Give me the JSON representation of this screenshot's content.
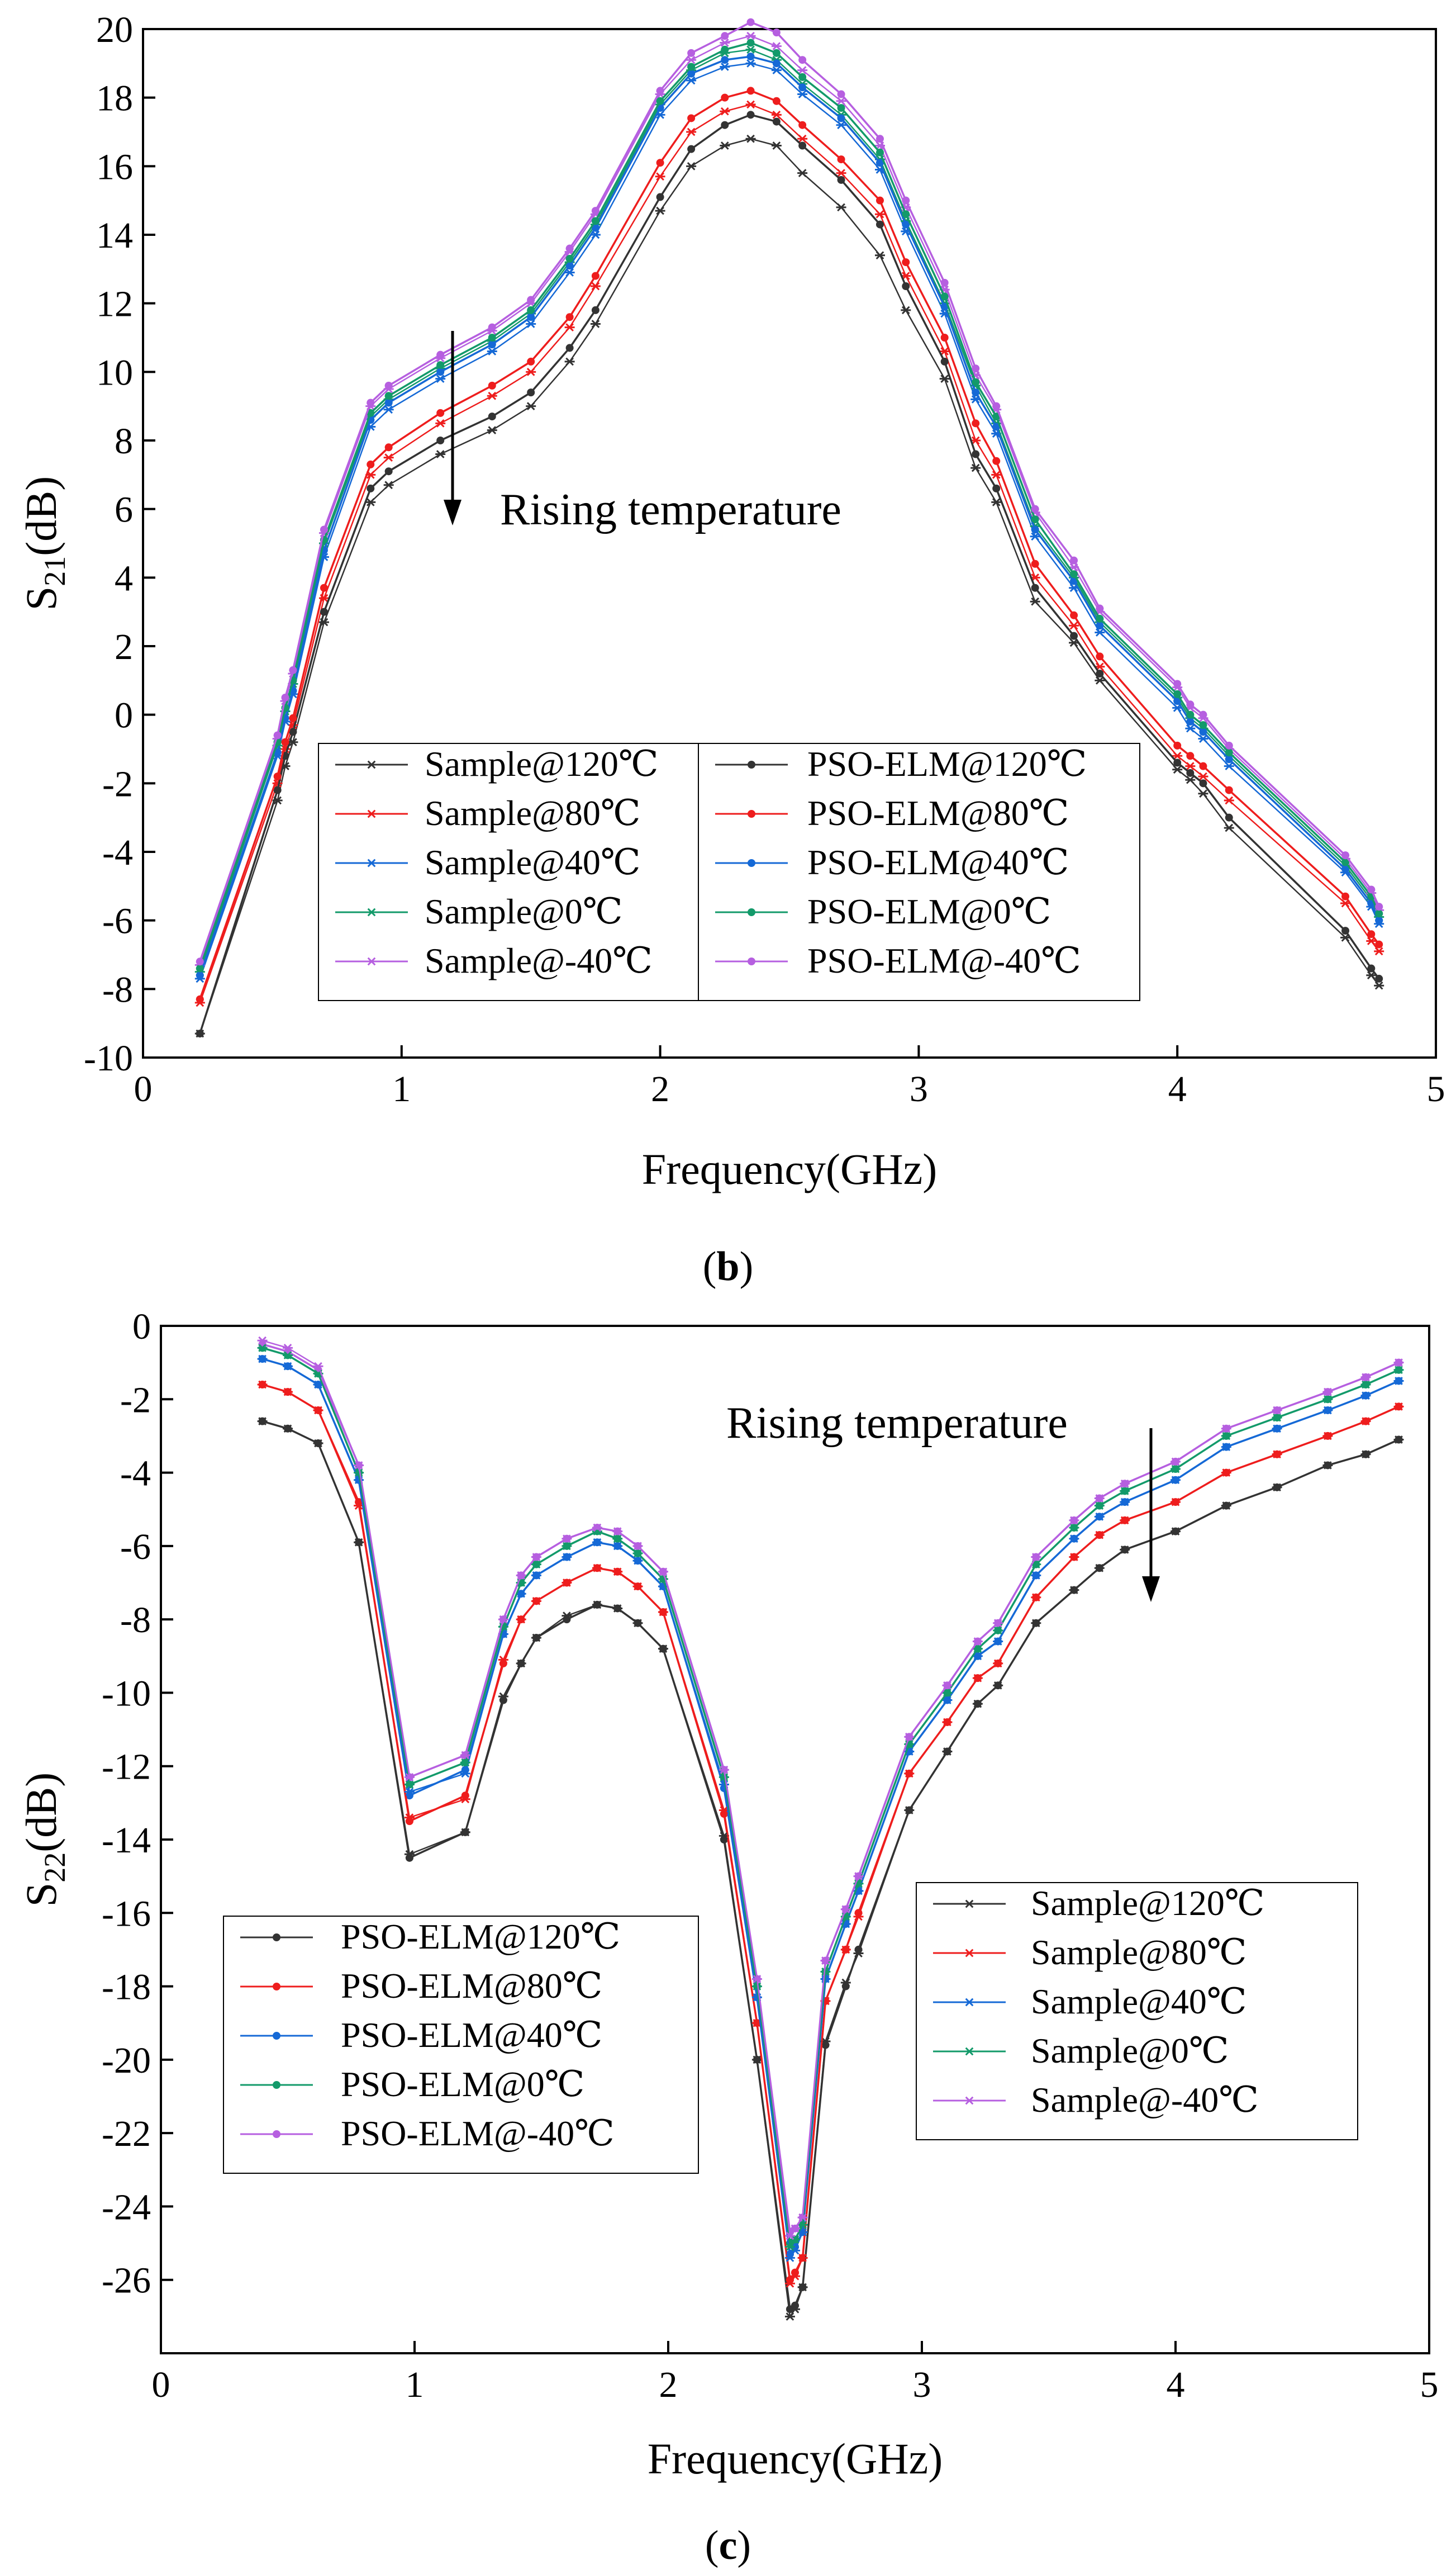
{
  "colors": {
    "c120": "#333333",
    "c80": "#ee1d1d",
    "c40": "#1569d6",
    "c0": "#139a6a",
    "cm40": "#b65fe0"
  },
  "chart_data": [
    {
      "id": "b",
      "caption": {
        "pre": "(",
        "letter": "b",
        "post": ")"
      },
      "type": "line",
      "xlabel": "Frequency(GHz)",
      "ylabel": {
        "base": "S",
        "sub": "21",
        "unit": "(dB)"
      },
      "xlim": [
        0,
        5
      ],
      "ylim": [
        -10,
        20
      ],
      "xticks": [
        "0",
        "1",
        "2",
        "3",
        "4",
        "5"
      ],
      "yticks": [
        "-10",
        "-8",
        "-6",
        "-4",
        "-2",
        "0",
        "2",
        "4",
        "6",
        "8",
        "10",
        "12",
        "14",
        "16",
        "18",
        "20"
      ],
      "annotation": "Rising temperature",
      "legend": {
        "left": [
          "Sample@120℃",
          "Sample@80℃",
          "Sample@40℃",
          "Sample@0℃",
          "Sample@-40℃"
        ],
        "right": [
          "PSO-ELM@120℃",
          "PSO-ELM@80℃",
          "PSO-ELM@40℃",
          "PSO-ELM@0℃",
          "PSO-ELM@-40℃"
        ]
      },
      "x": [
        0.22,
        0.52,
        0.55,
        0.58,
        0.7,
        0.88,
        0.95,
        1.15,
        1.35,
        1.5,
        1.65,
        1.75,
        2.0,
        2.12,
        2.25,
        2.35,
        2.45,
        2.55,
        2.7,
        2.85,
        2.95,
        3.1,
        3.22,
        3.3,
        3.45,
        3.6,
        3.7,
        4.0,
        4.05,
        4.1,
        4.2,
        4.65,
        4.75,
        4.78
      ],
      "series": [
        {
          "name": "Sample@120℃",
          "values": [
            -9.3,
            -2.5,
            -1.5,
            -0.8,
            2.7,
            6.2,
            6.7,
            7.6,
            8.3,
            9.0,
            10.3,
            11.4,
            14.7,
            16.0,
            16.6,
            16.8,
            16.6,
            15.8,
            14.8,
            13.4,
            11.8,
            9.8,
            7.2,
            6.2,
            3.3,
            2.1,
            1.0,
            -1.6,
            -1.9,
            -2.3,
            -3.3,
            -6.5,
            -7.6,
            -7.9
          ]
        },
        {
          "name": "Sample@80℃",
          "values": [
            -8.4,
            -2.0,
            -1.0,
            -0.3,
            3.4,
            7.0,
            7.5,
            8.5,
            9.3,
            10.0,
            11.3,
            12.5,
            15.7,
            17.0,
            17.6,
            17.8,
            17.5,
            16.8,
            15.8,
            14.6,
            12.8,
            10.6,
            8.0,
            7.0,
            4.0,
            2.6,
            1.4,
            -1.2,
            -1.5,
            -1.8,
            -2.5,
            -5.5,
            -6.6,
            -6.9
          ]
        },
        {
          "name": "Sample@40℃",
          "values": [
            -7.7,
            -1.2,
            -0.2,
            0.6,
            4.6,
            8.4,
            8.9,
            9.8,
            10.6,
            11.4,
            12.9,
            14.0,
            17.5,
            18.5,
            18.9,
            19.0,
            18.8,
            18.1,
            17.2,
            15.9,
            14.1,
            11.7,
            9.2,
            8.2,
            5.2,
            3.7,
            2.4,
            0.2,
            -0.4,
            -0.7,
            -1.5,
            -4.6,
            -5.6,
            -6.1
          ]
        },
        {
          "name": "Sample@0℃",
          "values": [
            -7.5,
            -0.9,
            0.1,
            0.9,
            5.0,
            8.7,
            9.2,
            10.1,
            10.9,
            11.7,
            13.2,
            14.3,
            17.8,
            18.8,
            19.3,
            19.4,
            19.1,
            18.4,
            17.5,
            16.2,
            14.4,
            12.0,
            9.6,
            8.5,
            5.5,
            4.0,
            2.7,
            0.5,
            -0.1,
            -0.4,
            -1.2,
            -4.4,
            -5.4,
            -5.9
          ]
        },
        {
          "name": "Sample@-40℃",
          "values": [
            -7.3,
            -0.7,
            0.4,
            1.2,
            5.3,
            9.0,
            9.5,
            10.4,
            11.2,
            12.0,
            13.5,
            14.6,
            18.1,
            19.1,
            19.6,
            19.8,
            19.5,
            18.8,
            17.9,
            16.6,
            14.8,
            12.4,
            9.9,
            8.9,
            5.9,
            4.3,
            3.0,
            0.8,
            0.2,
            -0.1,
            -1.0,
            -4.2,
            -5.2,
            -5.7
          ]
        },
        {
          "name": "PSO-ELM@120℃",
          "values": [
            -9.3,
            -2.2,
            -1.2,
            -0.5,
            3.0,
            6.6,
            7.1,
            8.0,
            8.7,
            9.4,
            10.7,
            11.8,
            15.1,
            16.5,
            17.2,
            17.5,
            17.3,
            16.6,
            15.6,
            14.3,
            12.5,
            10.3,
            7.6,
            6.6,
            3.7,
            2.3,
            1.2,
            -1.4,
            -1.7,
            -2.0,
            -3.0,
            -6.3,
            -7.4,
            -7.7
          ]
        },
        {
          "name": "PSO-ELM@80℃",
          "values": [
            -8.3,
            -1.8,
            -0.8,
            -0.1,
            3.7,
            7.3,
            7.8,
            8.8,
            9.6,
            10.3,
            11.6,
            12.8,
            16.1,
            17.4,
            18.0,
            18.2,
            17.9,
            17.2,
            16.2,
            15.0,
            13.2,
            11.0,
            8.5,
            7.4,
            4.4,
            2.9,
            1.7,
            -0.9,
            -1.2,
            -1.5,
            -2.2,
            -5.3,
            -6.4,
            -6.7
          ]
        },
        {
          "name": "PSO-ELM@40℃",
          "values": [
            -7.6,
            -1.1,
            -0.1,
            0.7,
            4.8,
            8.6,
            9.1,
            10.0,
            10.8,
            11.6,
            13.1,
            14.2,
            17.7,
            18.7,
            19.1,
            19.2,
            19.0,
            18.3,
            17.4,
            16.1,
            14.3,
            11.9,
            9.4,
            8.4,
            5.4,
            3.9,
            2.6,
            0.4,
            -0.2,
            -0.5,
            -1.3,
            -4.5,
            -5.5,
            -6.0
          ]
        },
        {
          "name": "PSO-ELM@0℃",
          "values": [
            -7.4,
            -0.8,
            0.2,
            1.0,
            5.1,
            8.8,
            9.3,
            10.2,
            11.0,
            11.8,
            13.3,
            14.4,
            17.9,
            18.9,
            19.4,
            19.6,
            19.3,
            18.6,
            17.7,
            16.4,
            14.6,
            12.2,
            9.7,
            8.7,
            5.7,
            4.1,
            2.8,
            0.6,
            0.0,
            -0.3,
            -1.1,
            -4.3,
            -5.3,
            -5.8
          ]
        },
        {
          "name": "PSO-ELM@-40℃",
          "values": [
            -7.2,
            -0.6,
            0.5,
            1.3,
            5.4,
            9.1,
            9.6,
            10.5,
            11.3,
            12.1,
            13.6,
            14.7,
            18.2,
            19.3,
            19.8,
            20.2,
            19.9,
            19.1,
            18.1,
            16.8,
            15.0,
            12.6,
            10.1,
            9.0,
            6.0,
            4.5,
            3.1,
            0.9,
            0.3,
            0.0,
            -0.9,
            -4.1,
            -5.1,
            -5.6
          ]
        }
      ]
    },
    {
      "id": "c",
      "caption": {
        "pre": "(",
        "letter": "c",
        "post": ")"
      },
      "type": "line",
      "xlabel": "Frequency(GHz)",
      "ylabel": {
        "base": "S",
        "sub": "22",
        "unit": "(dB)"
      },
      "xlim": [
        0,
        5
      ],
      "ylim": [
        -28,
        0
      ],
      "xticks": [
        "0",
        "1",
        "2",
        "3",
        "4",
        "5"
      ],
      "yticks": [
        "-26",
        "-24",
        "-22",
        "-20",
        "-18",
        "-16",
        "-14",
        "-12",
        "-10",
        "-8",
        "-6",
        "-4",
        "-2",
        "0"
      ],
      "annotation": "Rising temperature",
      "legend": {
        "left": [
          "PSO-ELM@120℃",
          "PSO-ELM@80℃",
          "PSO-ELM@40℃",
          "PSO-ELM@0℃",
          "PSO-ELM@-40℃"
        ],
        "right": [
          "Sample@120℃",
          "Sample@80℃",
          "Sample@40℃",
          "Sample@0℃",
          "Sample@-40℃"
        ]
      },
      "x": [
        0.4,
        0.5,
        0.62,
        0.78,
        0.98,
        1.2,
        1.35,
        1.42,
        1.48,
        1.6,
        1.72,
        1.8,
        1.88,
        1.98,
        2.22,
        2.35,
        2.48,
        2.5,
        2.53,
        2.62,
        2.7,
        2.75,
        2.95,
        3.1,
        3.22,
        3.3,
        3.45,
        3.6,
        3.7,
        3.8,
        4.0,
        4.2,
        4.4,
        4.6,
        4.75,
        4.88
      ],
      "series": [
        {
          "name": "PSO-ELM@120℃",
          "values": [
            -2.6,
            -2.8,
            -3.2,
            -5.9,
            -14.5,
            -13.8,
            -10.2,
            -9.2,
            -8.5,
            -8.0,
            -7.6,
            -7.7,
            -8.1,
            -8.8,
            -14.0,
            -20.0,
            -26.8,
            -26.7,
            -26.2,
            -19.6,
            -18.0,
            -17.0,
            -13.2,
            -11.6,
            -10.3,
            -9.8,
            -8.1,
            -7.2,
            -6.6,
            -6.1,
            -5.6,
            -4.9,
            -4.4,
            -3.8,
            -3.5,
            -3.1
          ]
        },
        {
          "name": "PSO-ELM@80℃",
          "values": [
            -1.6,
            -1.8,
            -2.3,
            -4.8,
            -13.5,
            -12.8,
            -9.2,
            -8.0,
            -7.5,
            -7.0,
            -6.6,
            -6.7,
            -7.1,
            -7.8,
            -13.3,
            -19.0,
            -26.0,
            -25.8,
            -25.4,
            -18.4,
            -17.0,
            -16.0,
            -12.2,
            -10.8,
            -9.6,
            -9.2,
            -7.4,
            -6.3,
            -5.7,
            -5.3,
            -4.8,
            -4.0,
            -3.5,
            -3.0,
            -2.6,
            -2.2
          ]
        },
        {
          "name": "PSO-ELM@40℃",
          "values": [
            -0.9,
            -1.1,
            -1.6,
            -4.2,
            -12.8,
            -12.1,
            -8.4,
            -7.3,
            -6.8,
            -6.3,
            -5.9,
            -6.0,
            -6.4,
            -7.1,
            -12.6,
            -18.3,
            -25.3,
            -25.1,
            -24.7,
            -17.8,
            -16.3,
            -15.4,
            -11.6,
            -10.2,
            -9.0,
            -8.6,
            -6.8,
            -5.8,
            -5.2,
            -4.8,
            -4.2,
            -3.3,
            -2.8,
            -2.3,
            -1.9,
            -1.5
          ]
        },
        {
          "name": "PSO-ELM@0℃",
          "values": [
            -0.6,
            -0.8,
            -1.3,
            -4.0,
            -12.5,
            -11.9,
            -8.2,
            -7.0,
            -6.5,
            -6.0,
            -5.6,
            -5.8,
            -6.2,
            -6.9,
            -12.3,
            -18.0,
            -25.0,
            -24.9,
            -24.5,
            -17.6,
            -16.1,
            -15.2,
            -11.4,
            -10.0,
            -8.8,
            -8.3,
            -6.5,
            -5.5,
            -4.9,
            -4.5,
            -3.9,
            -3.0,
            -2.5,
            -2.0,
            -1.6,
            -1.2
          ]
        },
        {
          "name": "PSO-ELM@-40℃",
          "values": [
            -0.5,
            -0.7,
            -1.2,
            -3.8,
            -12.3,
            -11.7,
            -8.0,
            -6.8,
            -6.3,
            -5.8,
            -5.5,
            -5.6,
            -6.0,
            -6.7,
            -12.1,
            -17.8,
            -24.7,
            -24.6,
            -24.3,
            -17.3,
            -15.9,
            -15.0,
            -11.2,
            -9.8,
            -8.6,
            -8.1,
            -6.3,
            -5.3,
            -4.7,
            -4.3,
            -3.7,
            -2.8,
            -2.3,
            -1.8,
            -1.4,
            -1.0
          ]
        },
        {
          "name": "Sample@120℃",
          "values": [
            -2.6,
            -2.8,
            -3.2,
            -5.9,
            -14.4,
            -13.8,
            -10.1,
            -9.2,
            -8.5,
            -7.9,
            -7.6,
            -7.7,
            -8.1,
            -8.8,
            -13.9,
            -20.0,
            -27.0,
            -26.8,
            -26.2,
            -19.5,
            -17.9,
            -17.1,
            -13.2,
            -11.6,
            -10.3,
            -9.8,
            -8.1,
            -7.2,
            -6.6,
            -6.1,
            -5.6,
            -4.9,
            -4.4,
            -3.8,
            -3.5,
            -3.1
          ]
        },
        {
          "name": "Sample@80℃",
          "values": [
            -1.6,
            -1.8,
            -2.3,
            -4.9,
            -13.4,
            -12.9,
            -9.1,
            -8.0,
            -7.5,
            -7.0,
            -6.6,
            -6.7,
            -7.1,
            -7.8,
            -13.2,
            -19.0,
            -26.1,
            -25.9,
            -25.4,
            -18.4,
            -17.0,
            -16.1,
            -12.2,
            -10.8,
            -9.6,
            -9.2,
            -7.4,
            -6.3,
            -5.7,
            -5.3,
            -4.8,
            -4.0,
            -3.5,
            -3.0,
            -2.6,
            -2.2
          ]
        },
        {
          "name": "Sample@40℃",
          "values": [
            -0.9,
            -1.1,
            -1.6,
            -4.2,
            -12.7,
            -12.2,
            -8.4,
            -7.3,
            -6.8,
            -6.3,
            -5.9,
            -6.0,
            -6.4,
            -7.1,
            -12.5,
            -18.3,
            -25.4,
            -25.2,
            -24.7,
            -17.8,
            -16.3,
            -15.4,
            -11.6,
            -10.2,
            -9.0,
            -8.6,
            -6.8,
            -5.8,
            -5.2,
            -4.8,
            -4.2,
            -3.3,
            -2.8,
            -2.3,
            -1.9,
            -1.5
          ]
        },
        {
          "name": "Sample@0℃",
          "values": [
            -0.6,
            -0.8,
            -1.3,
            -4.0,
            -12.5,
            -11.9,
            -8.2,
            -7.0,
            -6.5,
            -6.0,
            -5.6,
            -5.8,
            -6.2,
            -6.9,
            -12.3,
            -18.0,
            -25.1,
            -24.9,
            -24.5,
            -17.6,
            -16.1,
            -15.2,
            -11.4,
            -10.0,
            -8.8,
            -8.3,
            -6.5,
            -5.5,
            -4.9,
            -4.5,
            -3.9,
            -3.0,
            -2.5,
            -2.0,
            -1.6,
            -1.2
          ]
        },
        {
          "name": "Sample@-40℃",
          "values": [
            -0.4,
            -0.6,
            -1.1,
            -3.8,
            -12.3,
            -11.7,
            -8.0,
            -6.8,
            -6.3,
            -5.8,
            -5.5,
            -5.6,
            -6.0,
            -6.7,
            -12.1,
            -17.8,
            -24.8,
            -24.6,
            -24.3,
            -17.3,
            -15.9,
            -15.0,
            -11.2,
            -9.8,
            -8.6,
            -8.1,
            -6.3,
            -5.3,
            -4.7,
            -4.3,
            -3.7,
            -2.8,
            -2.3,
            -1.8,
            -1.4,
            -1.0
          ]
        }
      ]
    }
  ]
}
